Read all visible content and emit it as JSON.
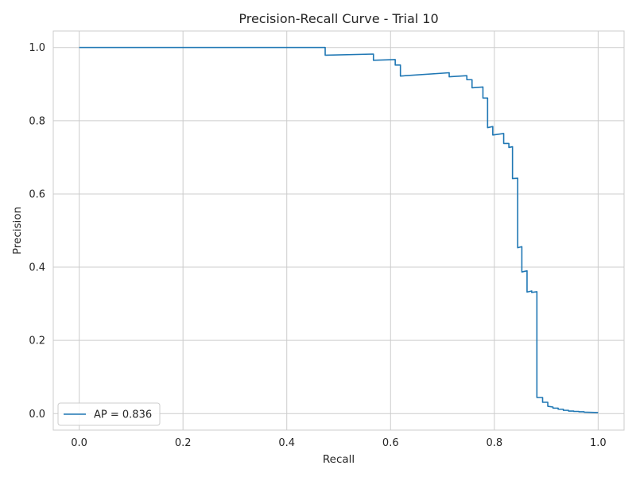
{
  "chart_data": {
    "type": "line",
    "title": "Precision-Recall Curve - Trial 10",
    "xlabel": "Recall",
    "ylabel": "Precision",
    "xlim": [
      -0.05,
      1.05
    ],
    "ylim": [
      -0.045,
      1.045
    ],
    "xticks": [
      0.0,
      0.2,
      0.4,
      0.6,
      0.8,
      1.0
    ],
    "xtick_labels": [
      "0.0",
      "0.2",
      "0.4",
      "0.6",
      "0.8",
      "1.0"
    ],
    "yticks": [
      0.0,
      0.2,
      0.4,
      0.6,
      0.8,
      1.0
    ],
    "ytick_labels": [
      "0.0",
      "0.2",
      "0.4",
      "0.6",
      "0.8",
      "1.0"
    ],
    "grid": true,
    "legend_position": "lower-left",
    "series": [
      {
        "name": "AP = 0.836",
        "color": "#1f77b4",
        "x": [
          0.0,
          0.474,
          0.474,
          0.567,
          0.567,
          0.609,
          0.609,
          0.619,
          0.619,
          0.713,
          0.713,
          0.747,
          0.747,
          0.757,
          0.757,
          0.778,
          0.778,
          0.787,
          0.787,
          0.797,
          0.797,
          0.818,
          0.818,
          0.828,
          0.828,
          0.835,
          0.835,
          0.845,
          0.845,
          0.853,
          0.853,
          0.863,
          0.863,
          0.872,
          0.872,
          0.882,
          0.882,
          0.893,
          0.893,
          0.903,
          0.903,
          0.913,
          0.913,
          0.923,
          0.923,
          0.933,
          0.933,
          0.943,
          0.943,
          0.953,
          0.953,
          0.963,
          0.963,
          0.973,
          0.973,
          1.0
        ],
        "y": [
          1.0,
          1.0,
          0.979,
          0.982,
          0.965,
          0.967,
          0.952,
          0.952,
          0.922,
          0.931,
          0.92,
          0.923,
          0.912,
          0.912,
          0.89,
          0.892,
          0.862,
          0.862,
          0.781,
          0.784,
          0.761,
          0.765,
          0.738,
          0.738,
          0.727,
          0.729,
          0.642,
          0.643,
          0.453,
          0.456,
          0.387,
          0.39,
          0.332,
          0.335,
          0.331,
          0.333,
          0.044,
          0.044,
          0.031,
          0.031,
          0.02,
          0.018,
          0.015,
          0.015,
          0.012,
          0.012,
          0.009,
          0.009,
          0.007,
          0.007,
          0.006,
          0.006,
          0.005,
          0.005,
          0.004,
          0.003
        ]
      }
    ]
  },
  "colors": {
    "line": "#1f77b4",
    "grid": "#cccccc",
    "text": "#262626"
  }
}
